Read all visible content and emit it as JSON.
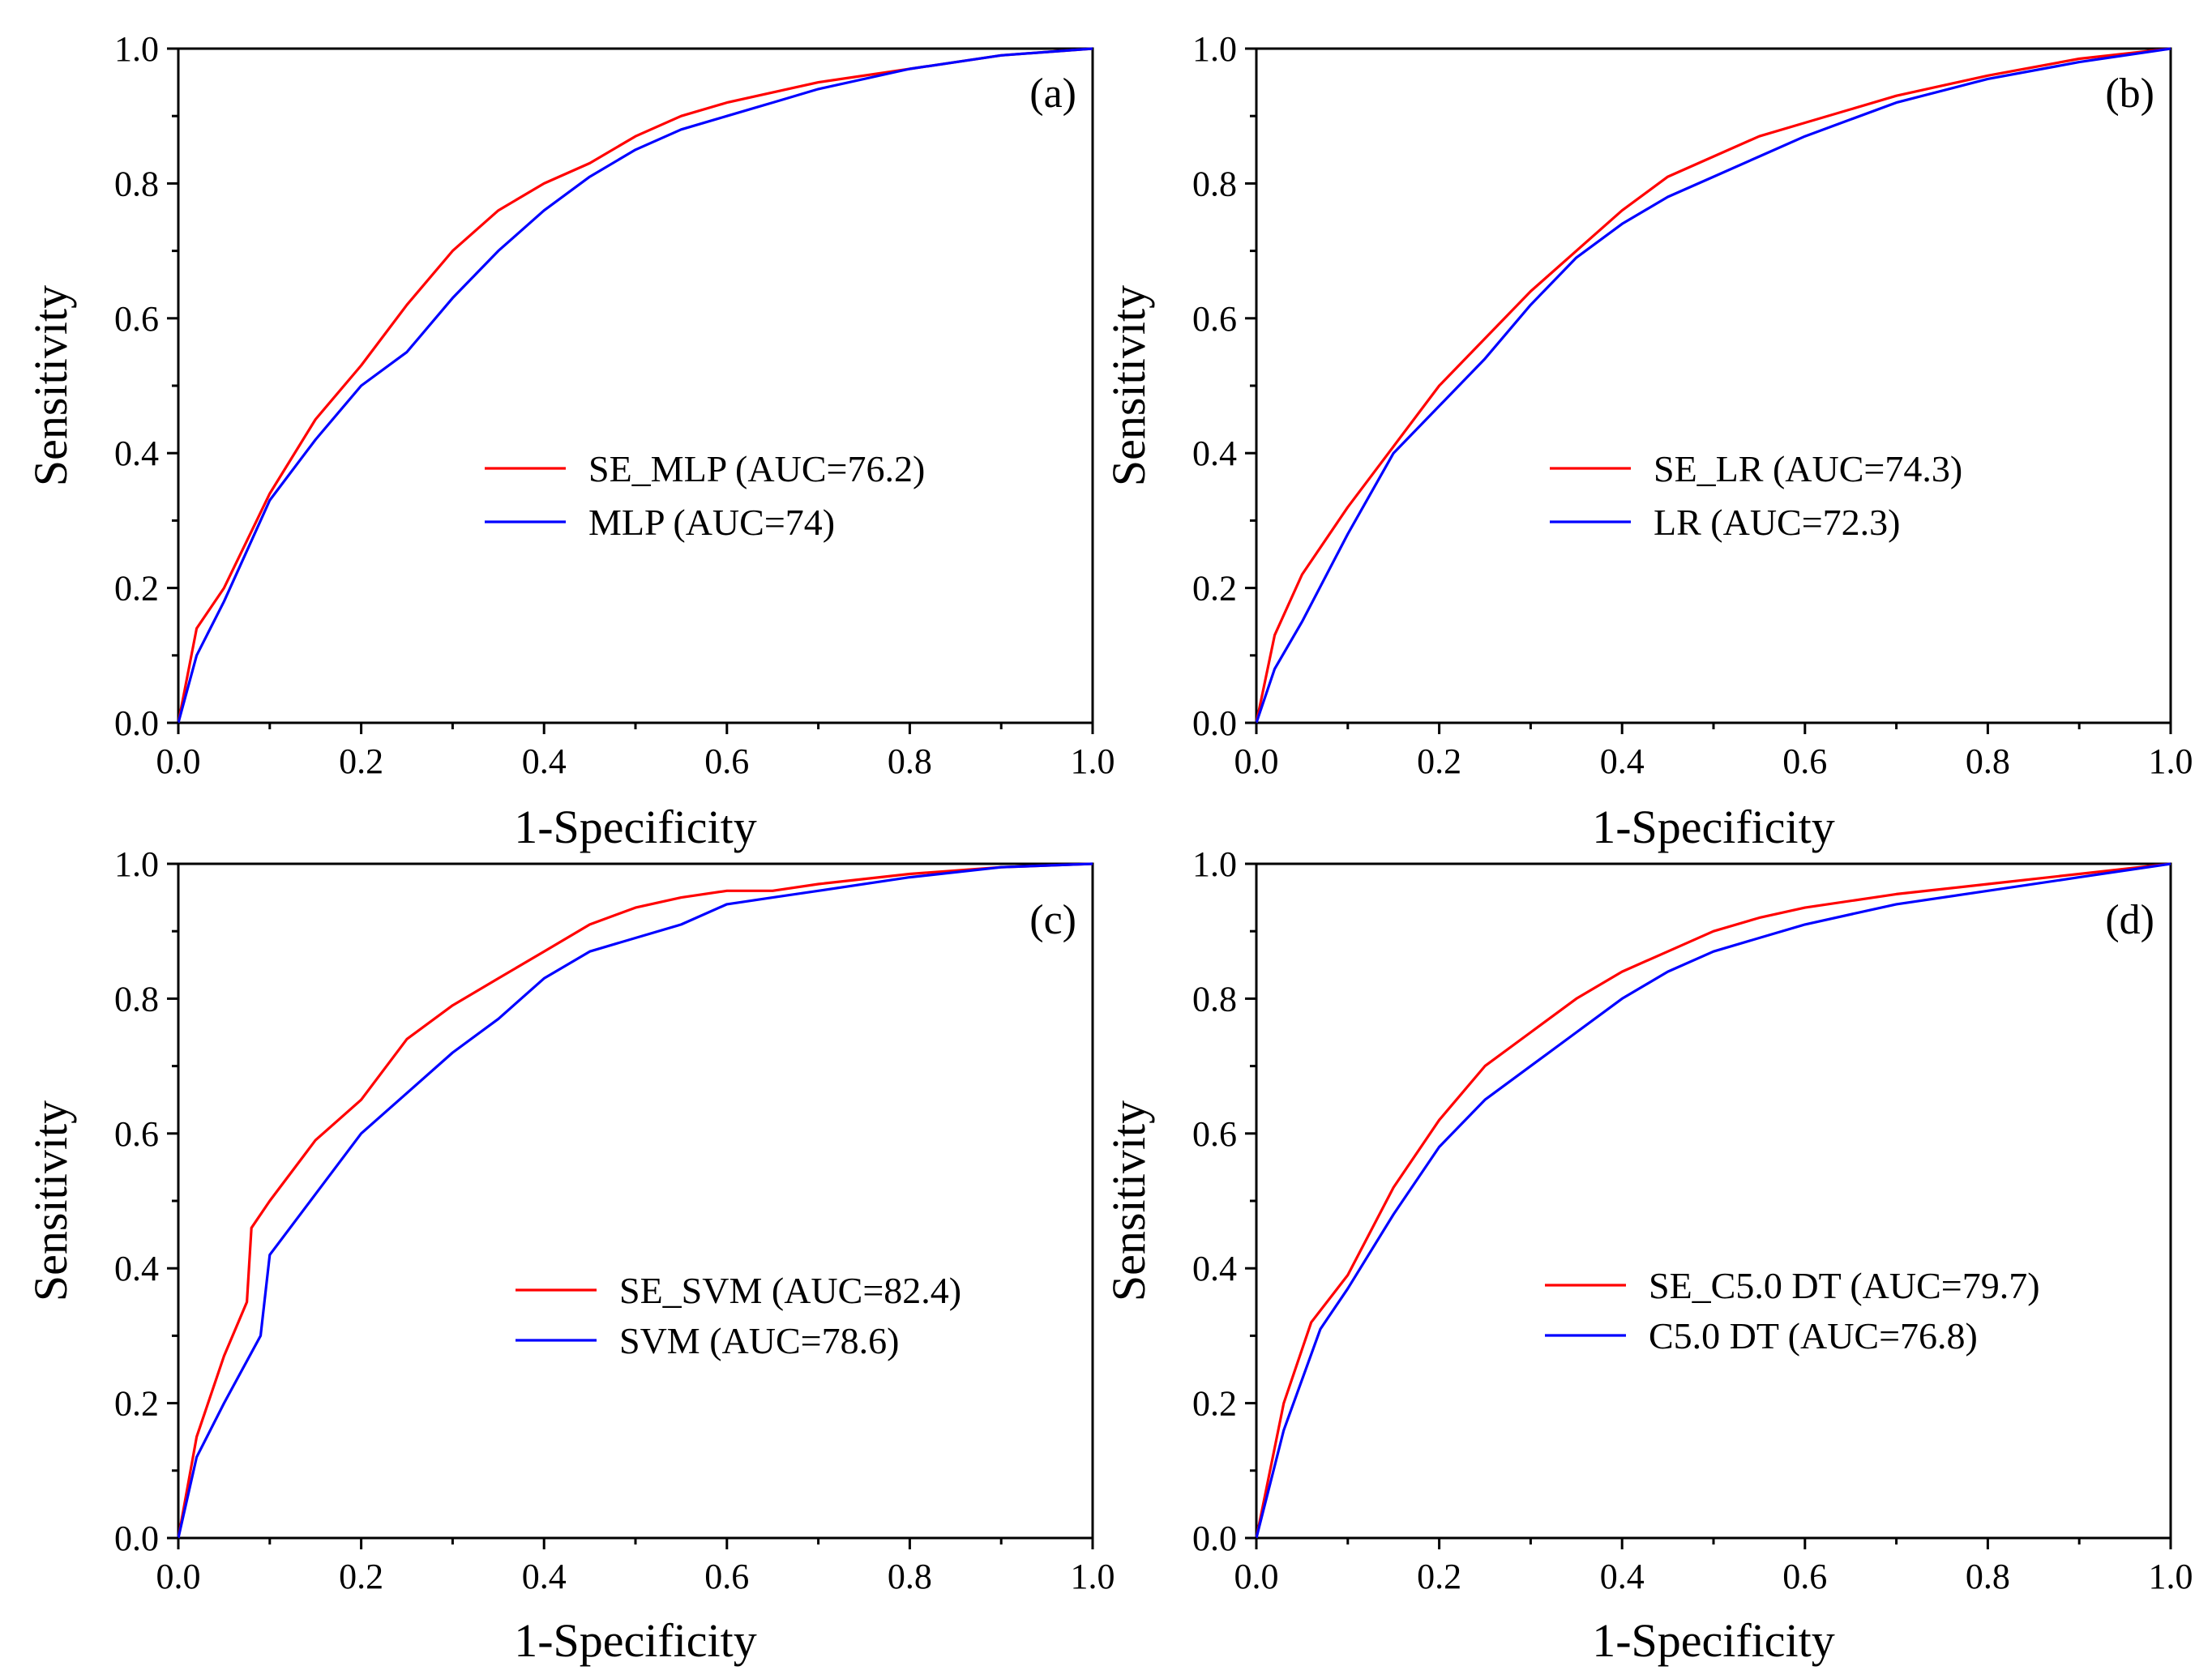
{
  "chart_data": [
    {
      "type": "line",
      "panel_label": "(a)",
      "xlabel": "1-Specificity",
      "ylabel": "Sensitivity",
      "xlim": [
        0,
        1
      ],
      "ylim": [
        0,
        1
      ],
      "xticks": [
        "0.0",
        "0.2",
        "0.4",
        "0.6",
        "0.8",
        "1.0"
      ],
      "yticks": [
        "0.0",
        "0.2",
        "0.4",
        "0.6",
        "0.8",
        "1.0"
      ],
      "legend_position": "center-right",
      "series": [
        {
          "name": "SE_MLP (AUC=76.2)",
          "color": "#ff0000",
          "x": [
            0,
            0.02,
            0.05,
            0.1,
            0.15,
            0.2,
            0.25,
            0.3,
            0.35,
            0.4,
            0.45,
            0.5,
            0.55,
            0.6,
            0.65,
            0.7,
            0.8,
            0.9,
            1.0
          ],
          "y": [
            0,
            0.14,
            0.2,
            0.34,
            0.45,
            0.53,
            0.62,
            0.7,
            0.76,
            0.8,
            0.83,
            0.87,
            0.9,
            0.92,
            0.935,
            0.95,
            0.97,
            0.99,
            1.0
          ]
        },
        {
          "name": "MLP (AUC=74)",
          "color": "#0000ff",
          "x": [
            0,
            0.02,
            0.05,
            0.1,
            0.15,
            0.2,
            0.25,
            0.3,
            0.35,
            0.4,
            0.45,
            0.5,
            0.55,
            0.6,
            0.65,
            0.7,
            0.8,
            0.9,
            1.0
          ],
          "y": [
            0,
            0.1,
            0.18,
            0.33,
            0.42,
            0.5,
            0.55,
            0.63,
            0.7,
            0.76,
            0.81,
            0.85,
            0.88,
            0.9,
            0.92,
            0.94,
            0.97,
            0.99,
            1.0
          ]
        }
      ]
    },
    {
      "type": "line",
      "panel_label": "(b)",
      "xlabel": "1-Specificity",
      "ylabel": "Sensitivity",
      "xlim": [
        0,
        1
      ],
      "ylim": [
        0,
        1
      ],
      "xticks": [
        "0.0",
        "0.2",
        "0.4",
        "0.6",
        "0.8",
        "1.0"
      ],
      "yticks": [
        "0.0",
        "0.2",
        "0.4",
        "0.6",
        "0.8",
        "1.0"
      ],
      "legend_position": "center-right",
      "series": [
        {
          "name": "SE_LR (AUC=74.3)",
          "color": "#ff0000",
          "x": [
            0,
            0.02,
            0.05,
            0.1,
            0.15,
            0.2,
            0.25,
            0.3,
            0.35,
            0.4,
            0.45,
            0.5,
            0.55,
            0.6,
            0.65,
            0.7,
            0.8,
            0.9,
            1.0
          ],
          "y": [
            0,
            0.13,
            0.22,
            0.32,
            0.41,
            0.5,
            0.57,
            0.64,
            0.7,
            0.76,
            0.81,
            0.84,
            0.87,
            0.89,
            0.91,
            0.93,
            0.96,
            0.985,
            1.0
          ]
        },
        {
          "name": "LR (AUC=72.3)",
          "color": "#0000ff",
          "x": [
            0,
            0.02,
            0.05,
            0.1,
            0.15,
            0.2,
            0.25,
            0.3,
            0.35,
            0.4,
            0.45,
            0.5,
            0.55,
            0.6,
            0.65,
            0.7,
            0.8,
            0.9,
            1.0
          ],
          "y": [
            0,
            0.08,
            0.15,
            0.28,
            0.4,
            0.47,
            0.54,
            0.62,
            0.69,
            0.74,
            0.78,
            0.81,
            0.84,
            0.87,
            0.895,
            0.92,
            0.955,
            0.98,
            1.0
          ]
        }
      ]
    },
    {
      "type": "line",
      "panel_label": "(c)",
      "xlabel": "1-Specificity",
      "ylabel": "Sensitivity",
      "xlim": [
        0,
        1
      ],
      "ylim": [
        0,
        1
      ],
      "xticks": [
        "0.0",
        "0.2",
        "0.4",
        "0.6",
        "0.8",
        "1.0"
      ],
      "yticks": [
        "0.0",
        "0.2",
        "0.4",
        "0.6",
        "0.8",
        "1.0"
      ],
      "legend_position": "center-right",
      "series": [
        {
          "name": "SE_SVM (AUC=82.4)",
          "color": "#ff0000",
          "x": [
            0,
            0.02,
            0.05,
            0.075,
            0.08,
            0.1,
            0.15,
            0.2,
            0.25,
            0.3,
            0.35,
            0.4,
            0.45,
            0.5,
            0.55,
            0.6,
            0.65,
            0.7,
            0.8,
            0.9,
            1.0
          ],
          "y": [
            0,
            0.15,
            0.27,
            0.35,
            0.46,
            0.5,
            0.59,
            0.65,
            0.74,
            0.79,
            0.83,
            0.87,
            0.91,
            0.935,
            0.95,
            0.96,
            0.96,
            0.97,
            0.985,
            0.995,
            1.0
          ]
        },
        {
          "name": "SVM (AUC=78.6)",
          "color": "#0000ff",
          "x": [
            0,
            0.02,
            0.05,
            0.09,
            0.1,
            0.15,
            0.2,
            0.25,
            0.3,
            0.35,
            0.4,
            0.45,
            0.5,
            0.55,
            0.6,
            0.65,
            0.7,
            0.8,
            0.9,
            1.0
          ],
          "y": [
            0,
            0.12,
            0.2,
            0.3,
            0.42,
            0.51,
            0.6,
            0.66,
            0.72,
            0.77,
            0.83,
            0.87,
            0.89,
            0.91,
            0.94,
            0.95,
            0.96,
            0.98,
            0.995,
            1.0
          ]
        }
      ]
    },
    {
      "type": "line",
      "panel_label": "(d)",
      "xlabel": "1-Specificity",
      "ylabel": "Sensitivity",
      "xlim": [
        0,
        1
      ],
      "ylim": [
        0,
        1
      ],
      "xticks": [
        "0.0",
        "0.2",
        "0.4",
        "0.6",
        "0.8",
        "1.0"
      ],
      "yticks": [
        "0.0",
        "0.2",
        "0.4",
        "0.6",
        "0.8",
        "1.0"
      ],
      "legend_position": "center-right",
      "series": [
        {
          "name": "SE_C5.0 DT (AUC=79.7)",
          "color": "#ff0000",
          "x": [
            0,
            0.03,
            0.06,
            0.1,
            0.15,
            0.2,
            0.25,
            0.3,
            0.35,
            0.4,
            0.45,
            0.5,
            0.55,
            0.6,
            0.7,
            0.8,
            0.9,
            1.0
          ],
          "y": [
            0,
            0.2,
            0.32,
            0.39,
            0.52,
            0.62,
            0.7,
            0.75,
            0.8,
            0.84,
            0.87,
            0.9,
            0.92,
            0.935,
            0.955,
            0.97,
            0.985,
            1.0
          ]
        },
        {
          "name": "C5.0 DT (AUC=76.8)",
          "color": "#0000ff",
          "x": [
            0,
            0.03,
            0.07,
            0.1,
            0.15,
            0.2,
            0.25,
            0.3,
            0.35,
            0.4,
            0.45,
            0.5,
            0.55,
            0.6,
            0.7,
            0.8,
            0.9,
            1.0
          ],
          "y": [
            0,
            0.16,
            0.31,
            0.37,
            0.48,
            0.58,
            0.65,
            0.7,
            0.75,
            0.8,
            0.84,
            0.87,
            0.89,
            0.91,
            0.94,
            0.96,
            0.98,
            1.0
          ]
        }
      ]
    }
  ]
}
